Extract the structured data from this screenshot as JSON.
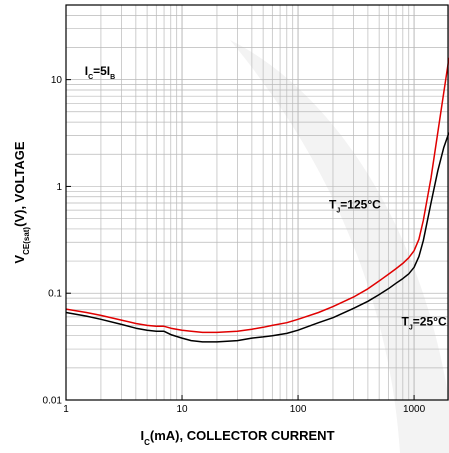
{
  "chart_data": {
    "type": "line",
    "x_scale": "log",
    "y_scale": "log",
    "xlim": [
      1,
      2000
    ],
    "ylim": [
      0.01,
      50
    ],
    "grid": true,
    "xlabel": {
      "main": "I",
      "sub": "C",
      "rest": "(mA), COLLECTOR CURRENT"
    },
    "ylabel": {
      "main": "V",
      "sub": "CE(sat)",
      "rest": "(V), VOLTAGE"
    },
    "x_ticks": [
      {
        "value": 1,
        "label": "1"
      },
      {
        "value": 10,
        "label": "10"
      },
      {
        "value": 100,
        "label": "100"
      },
      {
        "value": 1000,
        "label": "1000"
      }
    ],
    "y_ticks": [
      {
        "value": 0.01,
        "label": "0.01"
      },
      {
        "value": 0.1,
        "label": "0.1"
      },
      {
        "value": 1,
        "label": "1"
      },
      {
        "value": 10,
        "label": "10"
      }
    ],
    "annotations": [
      {
        "id": "condition",
        "main": "I",
        "sub": "C",
        "rest": "=5I",
        "sub2": "B",
        "x": 1.45,
        "y": 11
      },
      {
        "id": "label-125",
        "main": "T",
        "sub": "J",
        "rest": "=125°C",
        "x": 185,
        "y": 0.62
      },
      {
        "id": "label-25",
        "main": "T",
        "sub": "J",
        "rest": "=25°C",
        "x": 780,
        "y": 0.05
      }
    ],
    "series": [
      {
        "id": "tj-125",
        "color": "#e00000",
        "x": [
          1,
          1.5,
          2,
          3,
          4,
          5,
          6,
          7,
          8,
          10,
          12,
          15,
          20,
          30,
          40,
          50,
          60,
          80,
          100,
          150,
          200,
          300,
          400,
          500,
          600,
          700,
          800,
          900,
          1000,
          1100,
          1200,
          1400,
          1600,
          1800,
          2000
        ],
        "y": [
          0.071,
          0.066,
          0.062,
          0.056,
          0.052,
          0.05,
          0.049,
          0.049,
          0.047,
          0.045,
          0.044,
          0.043,
          0.043,
          0.044,
          0.046,
          0.048,
          0.05,
          0.053,
          0.057,
          0.066,
          0.075,
          0.092,
          0.11,
          0.13,
          0.15,
          0.17,
          0.19,
          0.215,
          0.25,
          0.32,
          0.48,
          1.2,
          3.2,
          7.5,
          16
        ]
      },
      {
        "id": "tj-25",
        "color": "#000000",
        "x": [
          1,
          1.5,
          2,
          3,
          4,
          5,
          6,
          7,
          8,
          10,
          12,
          15,
          20,
          30,
          40,
          50,
          60,
          80,
          100,
          150,
          200,
          300,
          400,
          500,
          600,
          700,
          800,
          900,
          1000,
          1100,
          1200,
          1400,
          1600,
          1800,
          2000
        ],
        "y": [
          0.066,
          0.061,
          0.057,
          0.051,
          0.047,
          0.045,
          0.044,
          0.044,
          0.041,
          0.038,
          0.036,
          0.035,
          0.035,
          0.036,
          0.038,
          0.039,
          0.04,
          0.042,
          0.045,
          0.053,
          0.059,
          0.072,
          0.084,
          0.097,
          0.11,
          0.124,
          0.137,
          0.152,
          0.175,
          0.22,
          0.31,
          0.7,
          1.4,
          2.3,
          3.2
        ]
      }
    ]
  }
}
